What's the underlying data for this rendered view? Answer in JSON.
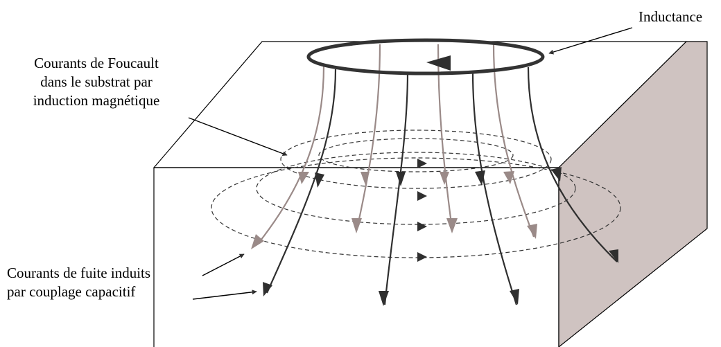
{
  "labels": {
    "inductance": "Inductance",
    "foucault": [
      "Courants de Foucault",
      "dans le substrat par",
      "induction magnétique"
    ],
    "fuite": [
      "Courants de fuite induits",
      "par couplage capacitif"
    ]
  },
  "colors": {
    "outline": "#000000",
    "coil": "#333333",
    "dark_field_line": "#2f2f2f",
    "light_field_line": "#9a8a88",
    "side_face": "#cfc3c1",
    "eddy_dash": "#333333"
  }
}
